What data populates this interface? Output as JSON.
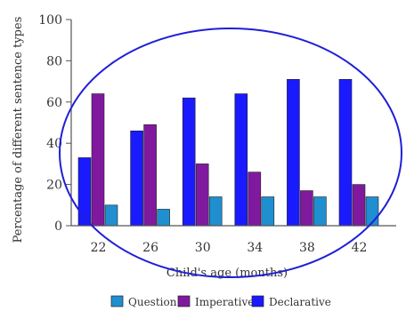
{
  "chart_data": {
    "type": "bar",
    "xlabel": "Child's age (months)",
    "ylabel": "Percentage of different sentence types",
    "categories": [
      "22",
      "26",
      "30",
      "34",
      "38",
      "42"
    ],
    "ylim": [
      0,
      100
    ],
    "yticks": [
      0,
      20,
      40,
      60,
      80,
      100
    ],
    "series": [
      {
        "name": "Declarative",
        "color": "#1a1aff",
        "values": [
          33,
          46,
          62,
          64,
          71,
          71
        ]
      },
      {
        "name": "Imperative",
        "color": "#7f1a9f",
        "values": [
          64,
          49,
          30,
          26,
          17,
          20
        ]
      },
      {
        "name": "Question",
        "color": "#1f8fd0",
        "values": [
          10,
          8,
          14,
          14,
          14,
          14
        ]
      }
    ],
    "legend": {
      "placement": "bottom",
      "order": [
        "Question",
        "Imperative",
        "Declarative"
      ]
    },
    "annotation": {
      "shape": "ellipse",
      "color": "#1f1fd6"
    },
    "grid": false
  }
}
